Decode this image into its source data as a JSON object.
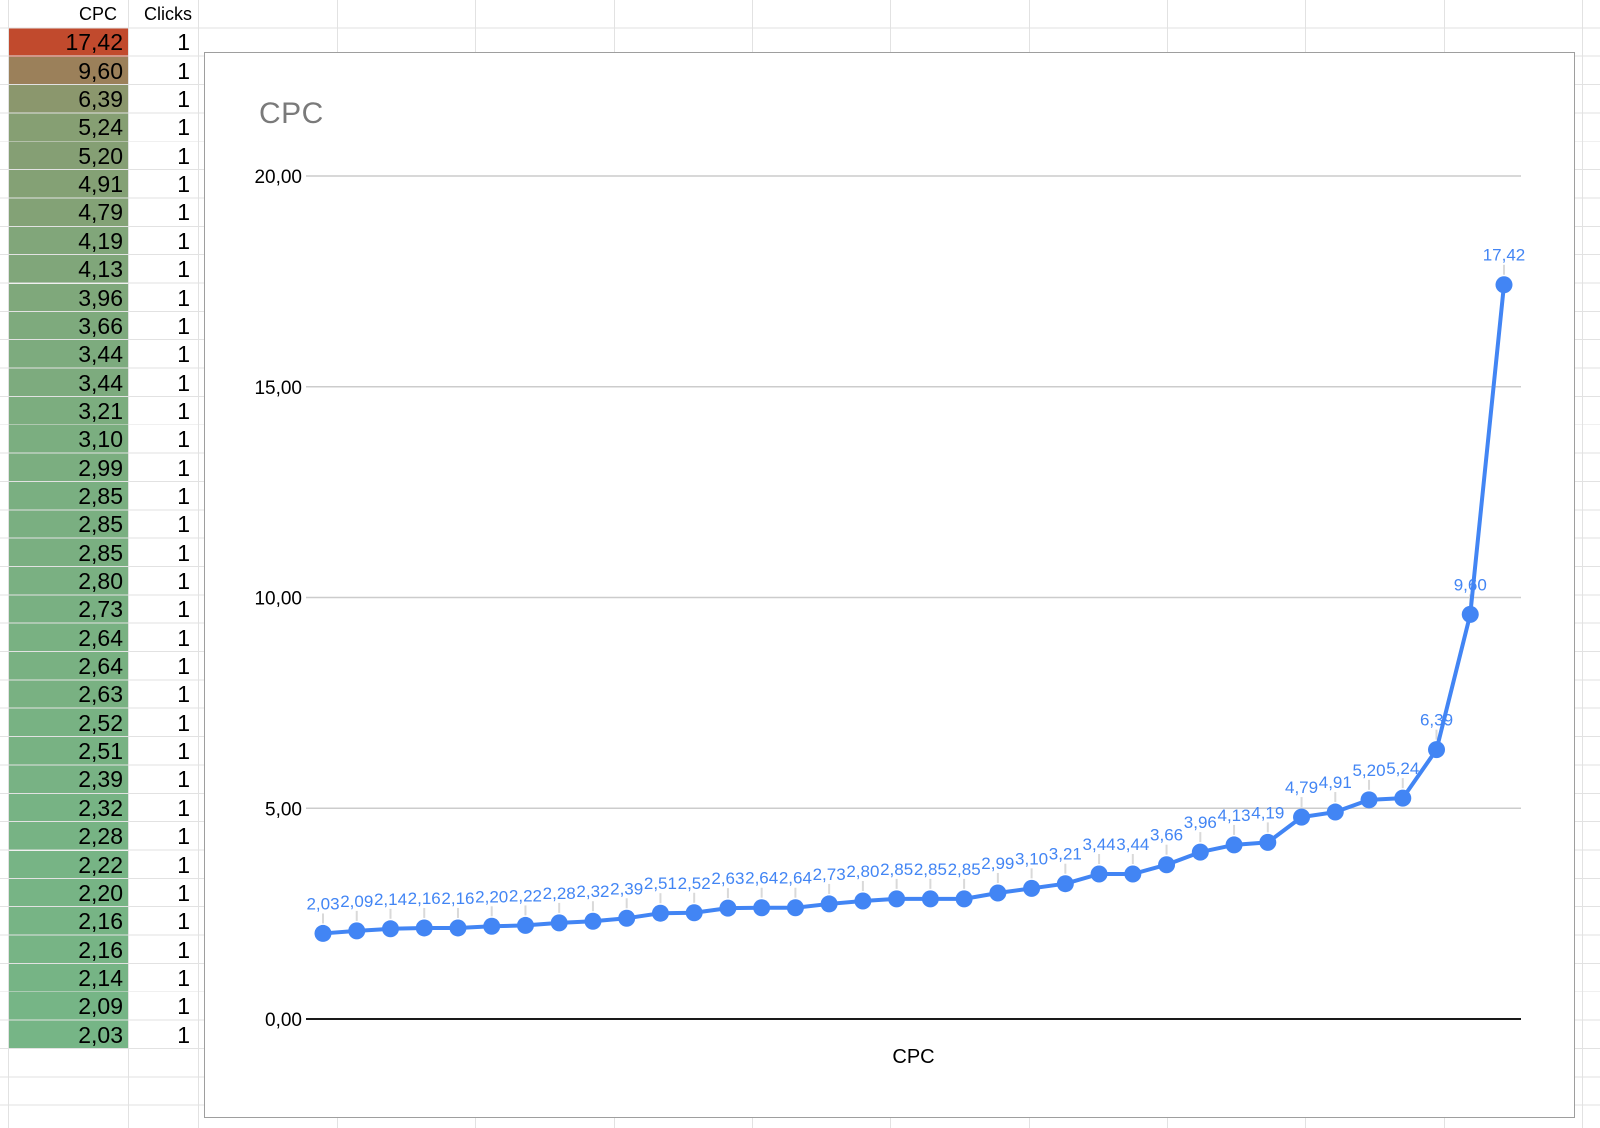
{
  "table": {
    "headers": {
      "cpc": "CPC",
      "clicks": "Clicks"
    },
    "rows": [
      {
        "cpc": "17,42",
        "clicks": "1",
        "color": "#C14A2D"
      },
      {
        "cpc": "9,60",
        "clicks": "1",
        "color": "#9B805A"
      },
      {
        "cpc": "6,39",
        "clicks": "1",
        "color": "#8B976D"
      },
      {
        "cpc": "5,24",
        "clicks": "1",
        "color": "#869F73"
      },
      {
        "cpc": "5,20",
        "clicks": "1",
        "color": "#859F74"
      },
      {
        "cpc": "4,91",
        "clicks": "1",
        "color": "#84A175"
      },
      {
        "cpc": "4,79",
        "clicks": "1",
        "color": "#83A276"
      },
      {
        "cpc": "4,19",
        "clicks": "1",
        "color": "#81A67A"
      },
      {
        "cpc": "4,13",
        "clicks": "1",
        "color": "#80A67A"
      },
      {
        "cpc": "3,96",
        "clicks": "1",
        "color": "#7FA87B"
      },
      {
        "cpc": "3,66",
        "clicks": "1",
        "color": "#7EAA7D"
      },
      {
        "cpc": "3,44",
        "clicks": "1",
        "color": "#7DAB7E"
      },
      {
        "cpc": "3,44",
        "clicks": "1",
        "color": "#7DAB7E"
      },
      {
        "cpc": "3,21",
        "clicks": "1",
        "color": "#7CAD7F"
      },
      {
        "cpc": "3,10",
        "clicks": "1",
        "color": "#7BAE80"
      },
      {
        "cpc": "2,99",
        "clicks": "1",
        "color": "#7BAE80"
      },
      {
        "cpc": "2,85",
        "clicks": "1",
        "color": "#7AAF81"
      },
      {
        "cpc": "2,85",
        "clicks": "1",
        "color": "#7AAF81"
      },
      {
        "cpc": "2,85",
        "clicks": "1",
        "color": "#7AAF81"
      },
      {
        "cpc": "2,80",
        "clicks": "1",
        "color": "#7AB082"
      },
      {
        "cpc": "2,73",
        "clicks": "1",
        "color": "#79B082"
      },
      {
        "cpc": "2,64",
        "clicks": "1",
        "color": "#79B182"
      },
      {
        "cpc": "2,64",
        "clicks": "1",
        "color": "#79B182"
      },
      {
        "cpc": "2,63",
        "clicks": "1",
        "color": "#79B182"
      },
      {
        "cpc": "2,52",
        "clicks": "1",
        "color": "#78B283"
      },
      {
        "cpc": "2,51",
        "clicks": "1",
        "color": "#78B283"
      },
      {
        "cpc": "2,39",
        "clicks": "1",
        "color": "#78B284"
      },
      {
        "cpc": "2,32",
        "clicks": "1",
        "color": "#77B384"
      },
      {
        "cpc": "2,28",
        "clicks": "1",
        "color": "#77B384"
      },
      {
        "cpc": "2,22",
        "clicks": "1",
        "color": "#77B485"
      },
      {
        "cpc": "2,20",
        "clicks": "1",
        "color": "#77B485"
      },
      {
        "cpc": "2,16",
        "clicks": "1",
        "color": "#77B485"
      },
      {
        "cpc": "2,16",
        "clicks": "1",
        "color": "#77B485"
      },
      {
        "cpc": "2,14",
        "clicks": "1",
        "color": "#76B485"
      },
      {
        "cpc": "2,09",
        "clicks": "1",
        "color": "#76B586"
      },
      {
        "cpc": "2,03",
        "clicks": "1",
        "color": "#76B586"
      }
    ]
  },
  "chart_data": {
    "type": "line",
    "title": "CPC",
    "xlabel": "CPC",
    "ylim": [
      0,
      20
    ],
    "grid": true,
    "ytick_values": [
      0,
      5,
      10,
      15,
      20
    ],
    "yticks": [
      "0,00",
      "5,00",
      "10,00",
      "15,00",
      "20,00"
    ],
    "series": [
      {
        "name": "CPC",
        "color": "#4285f4",
        "values": [
          2.03,
          2.09,
          2.14,
          2.16,
          2.16,
          2.2,
          2.22,
          2.28,
          2.32,
          2.39,
          2.51,
          2.52,
          2.63,
          2.64,
          2.64,
          2.73,
          2.8,
          2.85,
          2.85,
          2.85,
          2.99,
          3.1,
          3.21,
          3.44,
          3.44,
          3.66,
          3.96,
          4.13,
          4.19,
          4.79,
          4.91,
          5.2,
          5.24,
          6.39,
          9.6,
          17.42
        ],
        "labels": [
          "2,03",
          "2,09",
          "2,14",
          "2,16",
          "2,16",
          "2,20",
          "2,22",
          "2,28",
          "2,32",
          "2,39",
          "2,51",
          "2,52",
          "2,63",
          "2,64",
          "2,64",
          "2,73",
          "2,80",
          "2,85",
          "2,85",
          "2,85",
          "2,99",
          "3,10",
          "3,21",
          "3,44",
          "3,44",
          "3,66",
          "3,96",
          "4,13",
          "4,19",
          "4,79",
          "4,91",
          "5,20",
          "5,24",
          "6,39",
          "9,60",
          "17,42"
        ]
      }
    ],
    "point_labels": true
  },
  "colors": {
    "series_blue": "#4285f4",
    "chart_gridline": "#cccccc",
    "chart_zero_axis": "#1a1a1a",
    "chart_border": "#9e9e9e",
    "chart_title_gray": "#7a7a7a",
    "sheet_gridline": "#e2e2e2",
    "label_leader": "#d9d9d9",
    "scale_max_red": "#C14A2D",
    "scale_min_green": "#76B586"
  }
}
